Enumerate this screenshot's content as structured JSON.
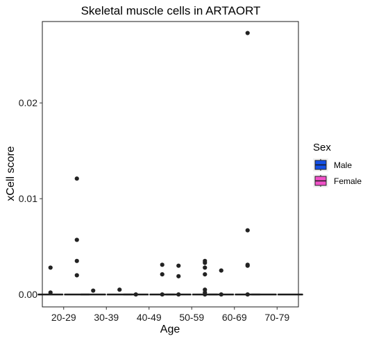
{
  "chart_data": {
    "type": "boxplot",
    "title": "Skeletal muscle cells in ARTAORT",
    "xlabel": "Age",
    "ylabel": "xCell score",
    "categories": [
      "20-29",
      "30-39",
      "40-49",
      "50-59",
      "60-69",
      "70-79"
    ],
    "ylim": [
      -0.0013,
      0.0285
    ],
    "yticks": [
      0.0,
      0.01,
      0.02
    ],
    "ytick_labels": [
      "0.00",
      "0.01",
      "0.02"
    ],
    "grid": false,
    "legend": {
      "title": "Sex",
      "position": "right"
    },
    "series": [
      {
        "name": "Male",
        "color": "#1450e6",
        "boxes": [
          {
            "median": 0.0,
            "q1": 0.0,
            "q3": 0.0,
            "whisker_low": 0.0,
            "whisker_high": 0.0
          },
          {
            "median": 0.0,
            "q1": 0.0,
            "q3": 0.0,
            "whisker_low": 0.0,
            "whisker_high": 0.0
          },
          {
            "median": 0.0,
            "q1": 0.0,
            "q3": 0.0,
            "whisker_low": 0.0,
            "whisker_high": 0.0
          },
          {
            "median": 0.0,
            "q1": 0.0,
            "q3": 0.0,
            "whisker_low": 0.0,
            "whisker_high": 0.0
          },
          {
            "median": 0.0,
            "q1": 0.0,
            "q3": 0.0,
            "whisker_low": 0.0,
            "whisker_high": 0.0
          },
          {
            "median": 0.0,
            "q1": 0.0,
            "q3": 0.0,
            "whisker_low": 0.0,
            "whisker_high": 0.0
          }
        ],
        "outliers": [
          {
            "category": "20-29",
            "value": 0.0028
          },
          {
            "category": "20-29",
            "value": 0.0002
          },
          {
            "category": "30-39",
            "value": 0.0004
          },
          {
            "category": "40-49",
            "value": 0.0
          },
          {
            "category": "50-59",
            "value": 0.003
          },
          {
            "category": "50-59",
            "value": 0.0019
          },
          {
            "category": "50-59",
            "value": 0.0
          },
          {
            "category": "60-69",
            "value": 0.0025
          },
          {
            "category": "60-69",
            "value": 0.0
          }
        ]
      },
      {
        "name": "Female",
        "color": "#f050c8",
        "boxes": [
          {
            "median": 0.0,
            "q1": 0.0,
            "q3": 0.0,
            "whisker_low": 0.0,
            "whisker_high": 0.0
          },
          {
            "median": 0.0,
            "q1": 0.0,
            "q3": 0.0,
            "whisker_low": 0.0,
            "whisker_high": 0.0
          },
          {
            "median": 0.0,
            "q1": 0.0,
            "q3": 0.0,
            "whisker_low": 0.0,
            "whisker_high": 0.0
          },
          {
            "median": 0.0,
            "q1": 0.0,
            "q3": 0.0,
            "whisker_low": 0.0,
            "whisker_high": 0.0
          },
          {
            "median": 0.0,
            "q1": 0.0,
            "q3": 0.0,
            "whisker_low": 0.0,
            "whisker_high": 0.0
          },
          {
            "median": 0.0,
            "q1": 0.0,
            "q3": 0.0,
            "whisker_low": 0.0,
            "whisker_high": 0.0
          }
        ],
        "outliers": [
          {
            "category": "20-29",
            "value": 0.0121
          },
          {
            "category": "20-29",
            "value": 0.0057
          },
          {
            "category": "20-29",
            "value": 0.0035
          },
          {
            "category": "20-29",
            "value": 0.002
          },
          {
            "category": "30-39",
            "value": 0.0005
          },
          {
            "category": "40-49",
            "value": 0.0031
          },
          {
            "category": "40-49",
            "value": 0.0021
          },
          {
            "category": "40-49",
            "value": 0.0
          },
          {
            "category": "50-59",
            "value": 0.0035
          },
          {
            "category": "50-59",
            "value": 0.0033
          },
          {
            "category": "50-59",
            "value": 0.0028
          },
          {
            "category": "50-59",
            "value": 0.0021
          },
          {
            "category": "50-59",
            "value": 0.0005
          },
          {
            "category": "50-59",
            "value": 0.0002
          },
          {
            "category": "50-59",
            "value": 0.0
          },
          {
            "category": "60-69",
            "value": 0.0273
          },
          {
            "category": "60-69",
            "value": 0.0067
          },
          {
            "category": "60-69",
            "value": 0.0031
          },
          {
            "category": "60-69",
            "value": 0.003
          },
          {
            "category": "60-69",
            "value": 0.0
          }
        ]
      }
    ]
  }
}
